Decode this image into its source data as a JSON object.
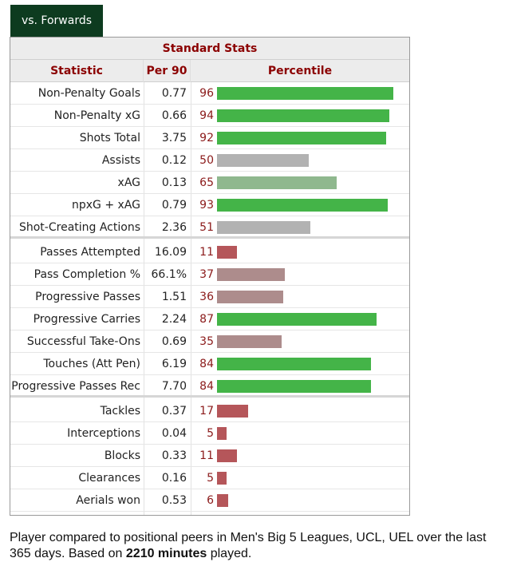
{
  "tab": {
    "label": "vs. Forwards"
  },
  "colors": {
    "elite": "#44b448",
    "good": "#8fb88e",
    "average": "#b2b2b2",
    "below": "#ad8c8c",
    "poor": "#b5565a"
  },
  "chart_data": {
    "type": "bar",
    "title": "Standard Stats",
    "columns": [
      "Statistic",
      "Per 90",
      "Percentile"
    ],
    "xlim": [
      0,
      100
    ],
    "groups": [
      {
        "rows": [
          {
            "stat": "Non-Penalty Goals",
            "per90": "0.77",
            "percentile": 96
          },
          {
            "stat": "Non-Penalty xG",
            "per90": "0.66",
            "percentile": 94
          },
          {
            "stat": "Shots Total",
            "per90": "3.75",
            "percentile": 92
          },
          {
            "stat": "Assists",
            "per90": "0.12",
            "percentile": 50
          },
          {
            "stat": "xAG",
            "per90": "0.13",
            "percentile": 65
          },
          {
            "stat": "npxG + xAG",
            "per90": "0.79",
            "percentile": 93
          },
          {
            "stat": "Shot-Creating Actions",
            "per90": "2.36",
            "percentile": 51
          }
        ]
      },
      {
        "rows": [
          {
            "stat": "Passes Attempted",
            "per90": "16.09",
            "percentile": 11
          },
          {
            "stat": "Pass Completion %",
            "per90": "66.1%",
            "percentile": 37
          },
          {
            "stat": "Progressive Passes",
            "per90": "1.51",
            "percentile": 36
          },
          {
            "stat": "Progressive Carries",
            "per90": "2.24",
            "percentile": 87
          },
          {
            "stat": "Successful Take-Ons",
            "per90": "0.69",
            "percentile": 35
          },
          {
            "stat": "Touches (Att Pen)",
            "per90": "6.19",
            "percentile": 84
          },
          {
            "stat": "Progressive Passes Rec",
            "per90": "7.70",
            "percentile": 84
          }
        ]
      },
      {
        "rows": [
          {
            "stat": "Tackles",
            "per90": "0.37",
            "percentile": 17
          },
          {
            "stat": "Interceptions",
            "per90": "0.04",
            "percentile": 5
          },
          {
            "stat": "Blocks",
            "per90": "0.33",
            "percentile": 11
          },
          {
            "stat": "Clearances",
            "per90": "0.16",
            "percentile": 5
          },
          {
            "stat": "Aerials won",
            "per90": "0.53",
            "percentile": 6
          }
        ]
      }
    ]
  },
  "footnote": {
    "text_before": "Player compared to positional peers in Men's Big 5 Leagues, UCL, UEL over the last 365 days. Based on ",
    "minutes": "2210 minutes",
    "text_after": " played."
  }
}
